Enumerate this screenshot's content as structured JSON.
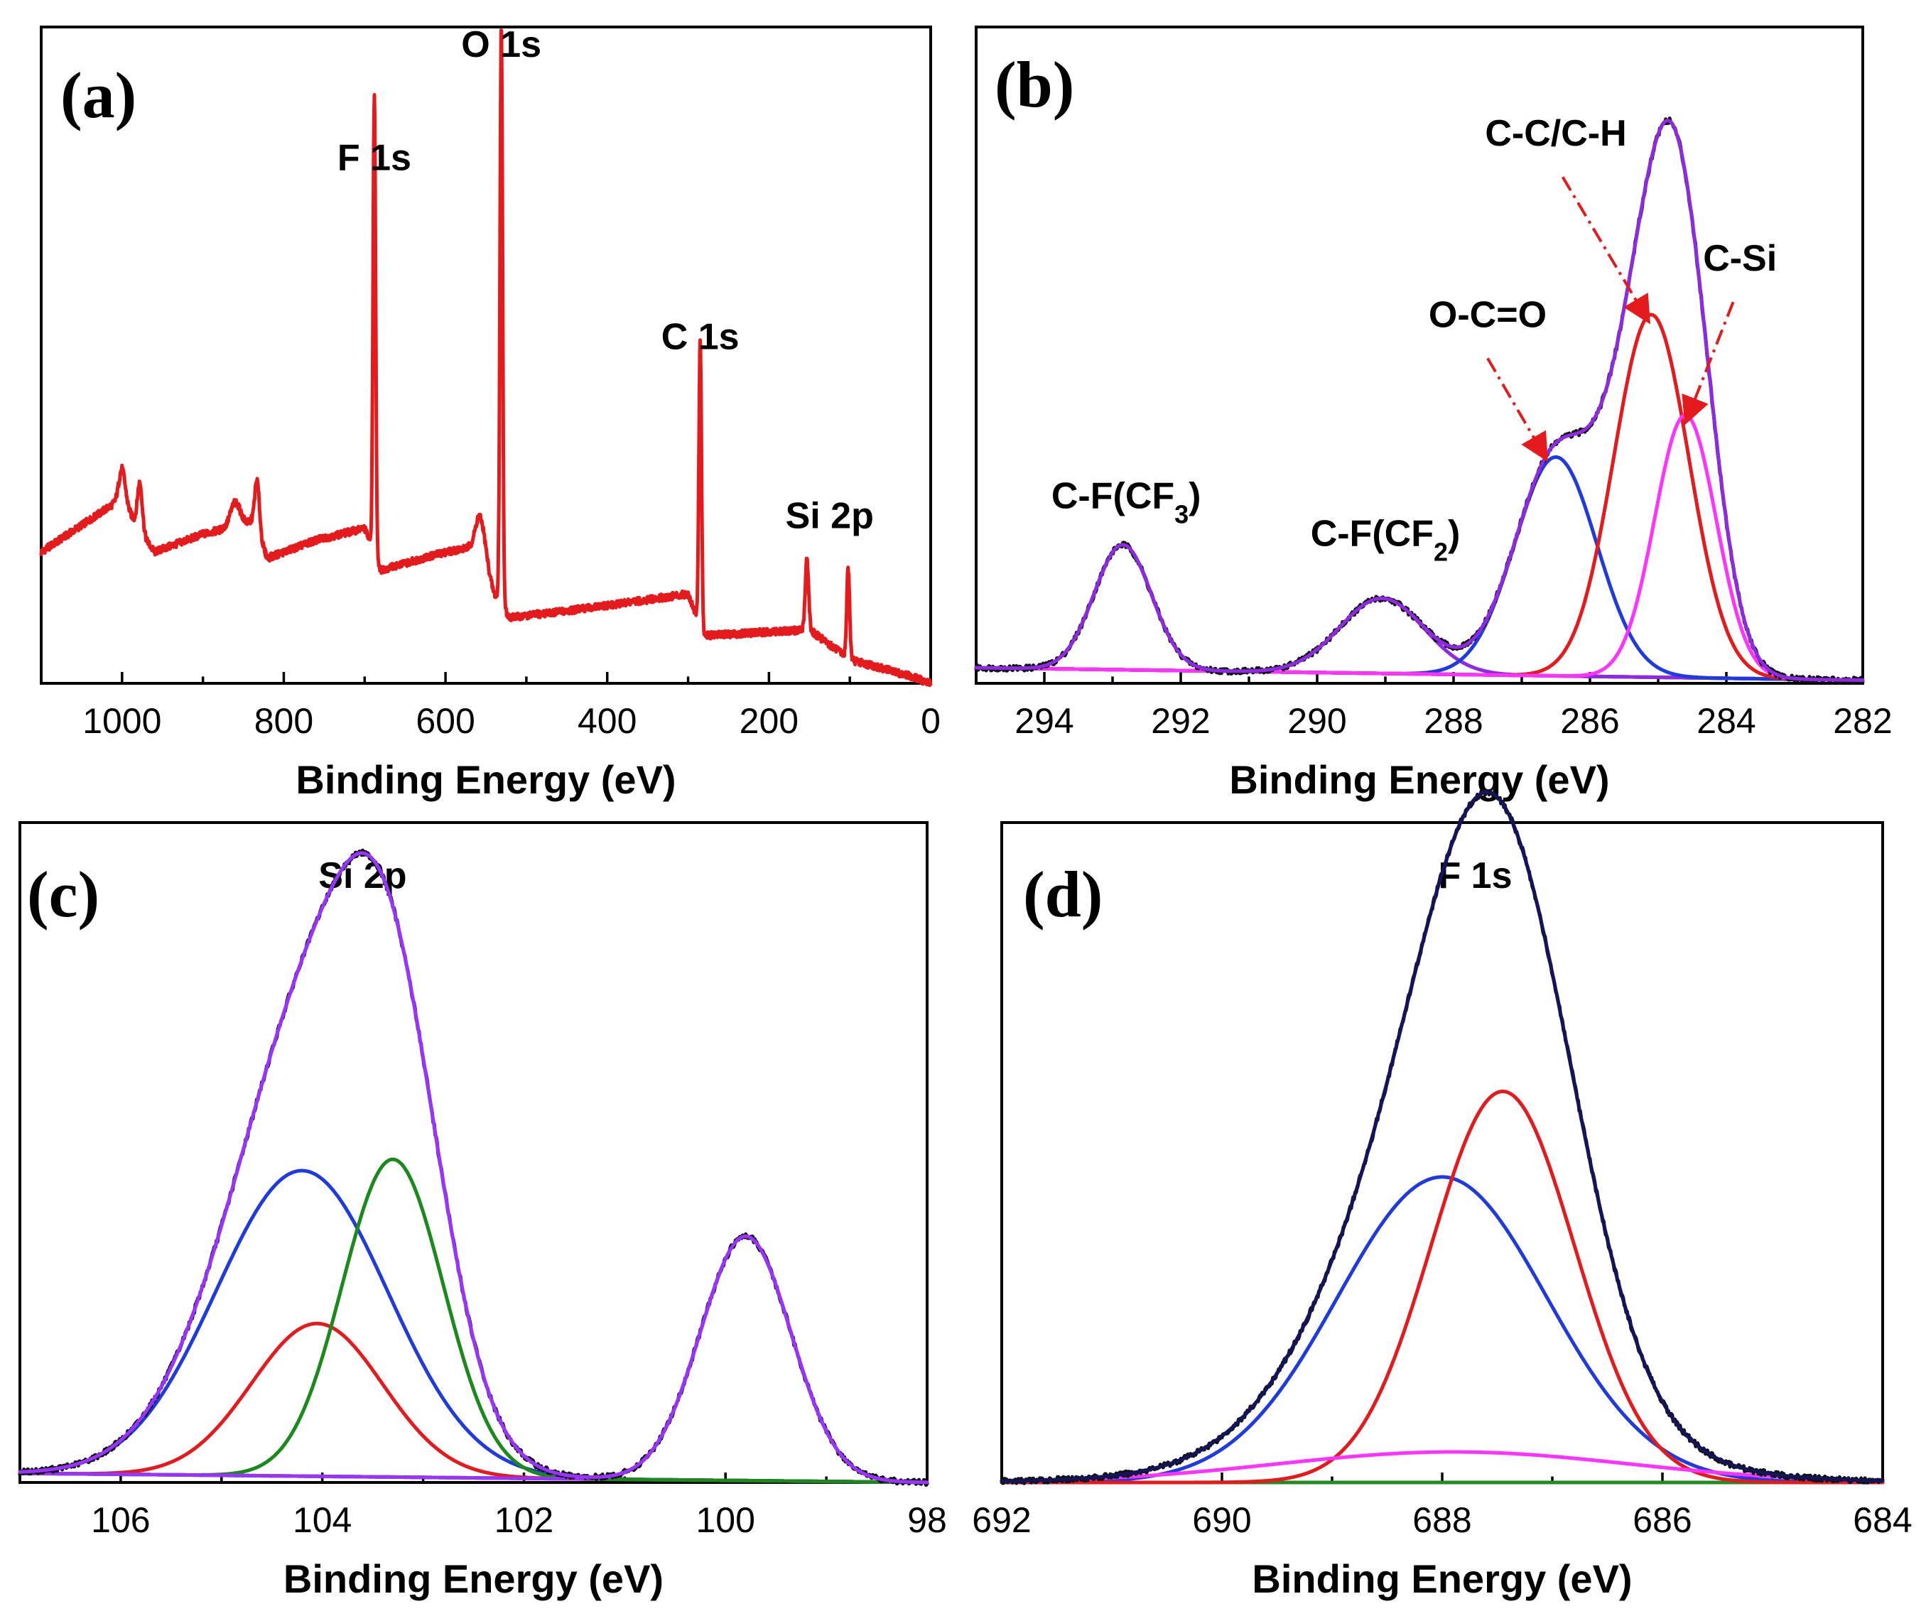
{
  "colors": {
    "red": "#e41a1c",
    "blue": "#1f3be0",
    "green": "#1a8a1a",
    "magenta": "#ff33ff",
    "purple": "#8e2be2",
    "violet": "#9933ff",
    "black": "#111111",
    "navy": "#14145a",
    "olive": "#228b22"
  },
  "chart_data": [
    {
      "type": "line",
      "panel": "(a)",
      "title": "",
      "xlabel": "Binding Energy (eV)",
      "ylabel": "",
      "xlim": [
        1100,
        0
      ],
      "ylim": [
        0,
        110
      ],
      "xticks": [
        1000,
        800,
        600,
        400,
        200,
        0
      ],
      "xtick_labels": [
        "1000",
        "800",
        "600",
        "400",
        "200",
        "0"
      ],
      "background": [
        [
          1100,
          22
        ],
        [
          1000,
          31
        ],
        [
          980,
          26
        ],
        [
          960,
          22
        ],
        [
          900,
          25
        ],
        [
          840,
          27
        ],
        [
          820,
          21
        ],
        [
          760,
          24
        ],
        [
          700,
          26
        ],
        [
          680,
          19
        ],
        [
          600,
          22
        ],
        [
          560,
          23
        ],
        [
          540,
          15
        ],
        [
          520,
          11
        ],
        [
          400,
          13
        ],
        [
          300,
          15
        ],
        [
          280,
          8
        ],
        [
          150,
          9
        ],
        [
          100,
          4
        ],
        [
          20,
          1
        ],
        [
          0,
          0
        ]
      ],
      "peaks": [
        {
          "center": 1000,
          "height": 5,
          "width": 4
        },
        {
          "center": 978,
          "height": 8,
          "width": 3
        },
        {
          "center": 860,
          "height": 4,
          "width": 6
        },
        {
          "center": 833,
          "height": 9,
          "width": 3
        },
        {
          "center": 688,
          "height": 77,
          "width": 1.6
        },
        {
          "center": 556,
          "height": 6,
          "width": 6
        },
        {
          "center": 531,
          "height": 97,
          "width": 1.6
        },
        {
          "center": 285,
          "height": 48,
          "width": 1.6
        },
        {
          "center": 153,
          "height": 12,
          "width": 2
        },
        {
          "center": 102,
          "height": 15,
          "width": 1.8
        }
      ],
      "series": [
        {
          "name": "survey",
          "color": "#e41a1c"
        }
      ],
      "annotations": [
        {
          "text": "O 1s",
          "x": 531,
          "y": 105
        },
        {
          "text": "F 1s",
          "x": 688,
          "y": 86
        },
        {
          "text": "C 1s",
          "x": 285,
          "y": 56
        },
        {
          "text": "Si 2p",
          "x": 125,
          "y": 26
        }
      ]
    },
    {
      "type": "line",
      "panel": "(b)",
      "title": "",
      "xlabel": "Binding Energy (eV)",
      "ylabel": "",
      "xlim": [
        295,
        282
      ],
      "ylim": [
        0,
        105
      ],
      "xticks": [
        294,
        292,
        290,
        288,
        286,
        284,
        282
      ],
      "xtick_labels": [
        "294",
        "292",
        "290",
        "288",
        "286",
        "284",
        "282"
      ],
      "baseline": [
        [
          295,
          2.5
        ],
        [
          282,
          0.5
        ]
      ],
      "components": [
        {
          "name": "C-F(CF3)",
          "center": 292.85,
          "height": 20,
          "sigma": 0.42,
          "color": "#8e2be2"
        },
        {
          "name": "C-F(CF2)",
          "center": 289.05,
          "height": 12,
          "sigma": 0.62,
          "color": "#8e2be2"
        },
        {
          "name": "O-C=O",
          "center": 286.5,
          "height": 35,
          "sigma": 0.6,
          "color": "#1f3be0"
        },
        {
          "name": "C-C/C-H",
          "center": 285.1,
          "height": 58,
          "sigma": 0.55,
          "color": "#e41a1c"
        },
        {
          "name": "C-Si",
          "center": 284.6,
          "height": 42,
          "sigma": 0.45,
          "color": "#ff33ff"
        }
      ],
      "envelope_color": "#8e2be2",
      "raw_color": "#111111",
      "annotations": [
        {
          "text": "C-F(CF",
          "sub": "3",
          "tail": ")",
          "x": 292.8,
          "y": 28
        },
        {
          "text": "C-F(CF",
          "sub": "2",
          "tail": ")",
          "x": 289.0,
          "y": 22
        },
        {
          "text": "O-C=O",
          "x": 287.5,
          "y": 57
        },
        {
          "text": "C-C/C-H",
          "x": 286.5,
          "y": 86
        },
        {
          "text": "C-Si",
          "x": 283.8,
          "y": 66
        }
      ]
    },
    {
      "type": "line",
      "panel": "(c)",
      "title": "Si 2p",
      "xlabel": "Binding Energy (eV)",
      "ylabel": "",
      "xlim": [
        107,
        98
      ],
      "ylim": [
        0,
        108
      ],
      "xticks": [
        106,
        104,
        102,
        100,
        98
      ],
      "xtick_labels": [
        "106",
        "104",
        "102",
        "100",
        "98"
      ],
      "baseline": [
        [
          107,
          1.5
        ],
        [
          98,
          0
        ]
      ],
      "components": [
        {
          "name": "peak-red",
          "center": 104.05,
          "height": 25,
          "sigma": 0.65,
          "color": "#e41a1c"
        },
        {
          "name": "peak-blue",
          "center": 104.2,
          "height": 50,
          "sigma": 0.85,
          "color": "#1f3be0"
        },
        {
          "name": "peak-green",
          "center": 103.3,
          "height": 52,
          "sigma": 0.5,
          "color": "#1a8a1a"
        },
        {
          "name": "peak-purple-2",
          "center": 99.8,
          "height": 40,
          "sigma": 0.45,
          "color": "#9933ff"
        }
      ],
      "envelope_color": "#9933ff",
      "raw_color": "#111111"
    },
    {
      "type": "line",
      "panel": "(d)",
      "title": "F 1s",
      "xlabel": "Binding Energy (eV)",
      "ylabel": "",
      "xlim": [
        692,
        684
      ],
      "ylim": [
        0,
        108
      ],
      "xticks": [
        692,
        690,
        688,
        686,
        684
      ],
      "xtick_labels": [
        "692",
        "690",
        "688",
        "686",
        "684"
      ],
      "baseline": [
        [
          692,
          0
        ],
        [
          684,
          0
        ]
      ],
      "components": [
        {
          "name": "peak-blue",
          "center": 688.0,
          "height": 50,
          "sigma": 0.95,
          "color": "#1f3be0"
        },
        {
          "name": "peak-red",
          "center": 687.45,
          "height": 64,
          "sigma": 0.65,
          "color": "#e41a1c"
        },
        {
          "name": "peak-magenta",
          "center": 687.9,
          "height": 5,
          "sigma": 1.6,
          "color": "#ff33ff"
        }
      ],
      "extra_lines": [
        {
          "name": "baseline-green",
          "color": "#228b22"
        }
      ],
      "envelope_color": "#14145a",
      "raw_color": "#111111"
    }
  ]
}
